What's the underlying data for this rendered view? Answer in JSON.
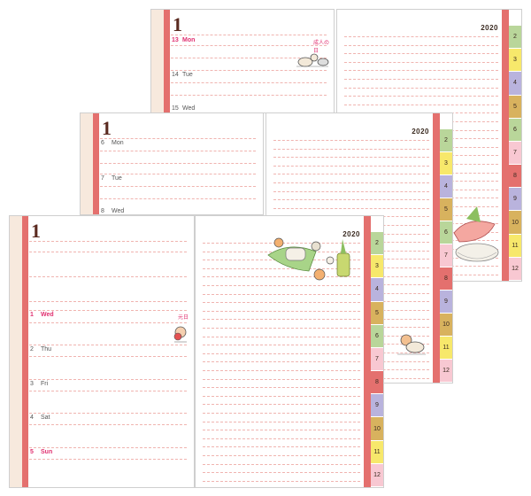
{
  "month_number": "1",
  "year": "2020",
  "tab_labels": [
    "2",
    "3",
    "4",
    "5",
    "6",
    "7",
    "8",
    "9",
    "10",
    "11",
    "12"
  ],
  "tab_colors": [
    "#b9d69a",
    "#f7e86b",
    "#b9b3dd",
    "#d8b25e",
    "#b9d69a",
    "#f8c8d2",
    "#e4706e",
    "#b9b3dd",
    "#d8b25e",
    "#f7e86b",
    "#f8c8d2"
  ],
  "spread_back": {
    "days": [
      {
        "num": "13",
        "name": "Mon",
        "holiday": "成人の日",
        "red": true
      },
      {
        "num": "14",
        "name": "Tue",
        "holiday": "",
        "red": false
      },
      {
        "num": "15",
        "name": "Wed",
        "holiday": "",
        "red": false
      }
    ]
  },
  "spread_middle": {
    "days": [
      {
        "num": "6",
        "name": "Mon",
        "holiday": "",
        "red": false
      },
      {
        "num": "7",
        "name": "Tue",
        "holiday": "",
        "red": false
      },
      {
        "num": "8",
        "name": "Wed",
        "holiday": "",
        "red": false
      }
    ]
  },
  "spread_front": {
    "days": [
      {
        "num": "1",
        "name": "Wed",
        "holiday": "元日",
        "red": true
      },
      {
        "num": "2",
        "name": "Thu",
        "holiday": "",
        "red": false
      },
      {
        "num": "3",
        "name": "Fri",
        "holiday": "",
        "red": false
      },
      {
        "num": "4",
        "name": "Sat",
        "holiday": "",
        "red": false
      },
      {
        "num": "5",
        "name": "Sun",
        "holiday": "",
        "red": true
      }
    ]
  }
}
